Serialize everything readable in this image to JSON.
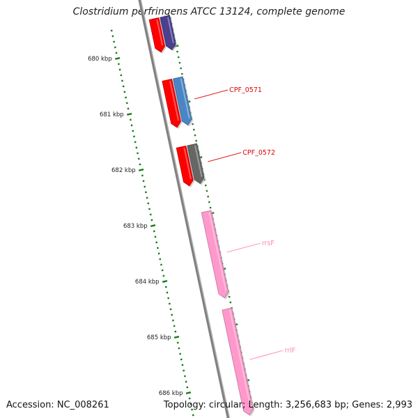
{
  "title": "Clostridium perfringens ATCC 13124, complete genome",
  "footer": {
    "accession": "Accession: NC_008261",
    "summary": "Topology: circular; Length: 3,256,683 bp; Genes: 2,993"
  },
  "colors": {
    "backbone": "#808080",
    "tick": "#1a7a1a",
    "cds_red": "#ff0000",
    "cds_purple": "#4b3f8f",
    "cds_blue": "#4a86c5",
    "cds_gray": "#666666",
    "rrna_pink": "#ff99cc"
  },
  "ticks": [
    {
      "label": "680 kbp",
      "kbp": 680
    },
    {
      "label": "681 kbp",
      "kbp": 681
    },
    {
      "label": "682 kbp",
      "kbp": 682
    },
    {
      "label": "683 kbp",
      "kbp": 683
    },
    {
      "label": "684 kbp",
      "kbp": 684
    },
    {
      "label": "685 kbp",
      "kbp": 685
    },
    {
      "label": "686 kbp",
      "kbp": 686
    }
  ],
  "features": [
    {
      "name": "feature-cds-red-1",
      "label": "",
      "color": "#ff0000",
      "track": "inner",
      "start_kbp": 679.45,
      "end_kbp": 680.05
    },
    {
      "name": "feature-cds-purple-1",
      "label": "",
      "color": "#4b3f8f",
      "track": "outer",
      "start_kbp": 679.45,
      "end_kbp": 680.05
    },
    {
      "name": "feature-cds-red-2",
      "label": "",
      "color": "#ff0000",
      "track": "inner",
      "start_kbp": 680.55,
      "end_kbp": 681.4
    },
    {
      "name": "feature-cds-blue-cpf0571",
      "label": "CPF_0571",
      "color": "#4a86c5",
      "track": "outer",
      "start_kbp": 680.55,
      "end_kbp": 681.4
    },
    {
      "name": "feature-cds-red-3",
      "label": "",
      "color": "#ff0000",
      "track": "inner",
      "start_kbp": 681.75,
      "end_kbp": 682.45
    },
    {
      "name": "feature-cds-gray-cpf0572",
      "label": "CPF_0572",
      "color": "#666666",
      "track": "outer",
      "start_kbp": 681.75,
      "end_kbp": 682.45
    },
    {
      "name": "feature-rrna-rrsf",
      "label": "rrsF",
      "color": "#ff99cc",
      "track": "outer",
      "start_kbp": 682.95,
      "end_kbp": 684.5
    },
    {
      "name": "feature-rrna-rrlf",
      "label": "rrlF",
      "color": "#ff99cc",
      "track": "outer",
      "start_kbp": 684.7,
      "end_kbp": 686.6
    }
  ],
  "feature_labels": [
    {
      "feature": "feature-cds-blue-cpf0571",
      "text": "CPF_0571",
      "color": "#dd0000"
    },
    {
      "feature": "feature-cds-gray-cpf0572",
      "text": "CPF_0572",
      "color": "#dd0000"
    },
    {
      "feature": "feature-rrna-rrsf",
      "text": "rrsF",
      "color": "#ff88bb"
    },
    {
      "feature": "feature-rrna-rrlf",
      "text": "rrlF",
      "color": "#ff88bb"
    }
  ]
}
